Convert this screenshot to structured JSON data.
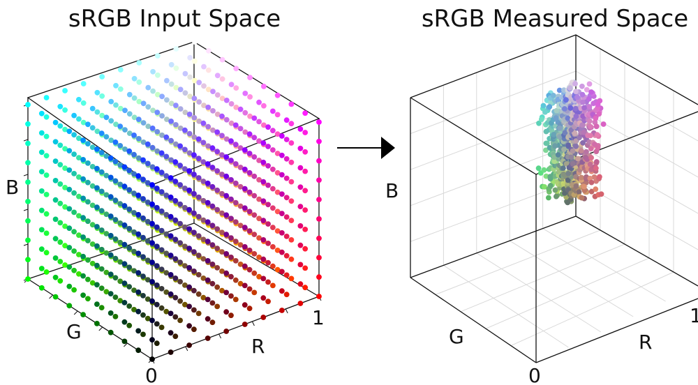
{
  "chart_data": [
    {
      "type": "scatter",
      "title": "sRGB Input Space",
      "axes": {
        "x": {
          "label": "R",
          "range": [
            0,
            1
          ],
          "ticks": [
            "0",
            "1"
          ]
        },
        "y": {
          "label": "G",
          "range": [
            0,
            1
          ]
        },
        "z": {
          "label": "B",
          "range": [
            0,
            1
          ]
        }
      },
      "points": {
        "description_grid": "regular 10x10x10 lattice of sRGB colors, each point colored by its own RGB value",
        "steps_per_axis": 10
      },
      "grid": false
    },
    {
      "type": "scatter",
      "title": "sRGB Measured Space",
      "axes": {
        "x": {
          "label": "R",
          "range": [
            0,
            1
          ],
          "ticks": [
            "0",
            "1"
          ]
        },
        "y": {
          "label": "G",
          "range": [
            0,
            1
          ]
        },
        "z": {
          "label": "B",
          "range": [
            0,
            1
          ]
        }
      },
      "grid": true
    }
  ],
  "arrow": {
    "color": "#000000"
  }
}
